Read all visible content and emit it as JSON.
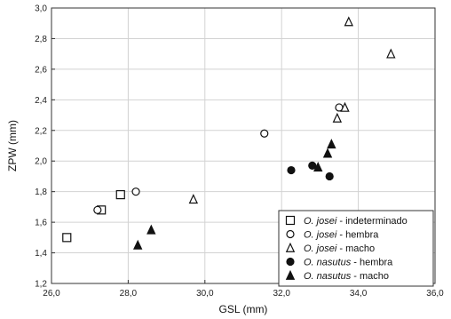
{
  "chart_data": {
    "type": "scatter",
    "xlabel": "GSL (mm)",
    "ylabel": "ZPW (mm)",
    "xlim": [
      26.0,
      36.0
    ],
    "ylim": [
      1.2,
      3.0
    ],
    "x_ticks": [
      "26,0",
      "28,0",
      "30,0",
      "32,0",
      "34,0",
      "36,0"
    ],
    "y_ticks": [
      "1,2",
      "1,4",
      "1,6",
      "1,8",
      "2,0",
      "2,2",
      "2,4",
      "2,6",
      "2,8",
      "3,0"
    ],
    "grid": true,
    "legend_position": "bottom-right",
    "series": [
      {
        "genus": "O.",
        "species": "josei",
        "sex": "indeterminado",
        "marker": "square-open",
        "x": [
          26.4,
          27.3,
          27.8
        ],
        "y": [
          1.5,
          1.68,
          1.78
        ]
      },
      {
        "genus": "O.",
        "species": "josei",
        "sex": "hembra",
        "marker": "circle-open",
        "x": [
          27.2,
          28.2,
          31.55,
          33.5
        ],
        "y": [
          1.68,
          1.8,
          2.18,
          2.35
        ]
      },
      {
        "genus": "O.",
        "species": "josei",
        "sex": "macho",
        "marker": "triangle-open",
        "x": [
          29.7,
          33.45,
          33.65,
          33.75,
          34.85
        ],
        "y": [
          1.75,
          2.28,
          2.35,
          2.91,
          2.7
        ]
      },
      {
        "genus": "O.",
        "species": "nasutus",
        "sex": "hembra",
        "marker": "circle-filled",
        "x": [
          32.25,
          32.8,
          33.25
        ],
        "y": [
          1.94,
          1.97,
          1.9
        ]
      },
      {
        "genus": "O.",
        "species": "nasutus",
        "sex": "macho",
        "marker": "triangle-filled",
        "x": [
          28.25,
          28.6,
          32.95,
          33.2,
          33.3
        ],
        "y": [
          1.45,
          1.55,
          1.96,
          2.05,
          2.11
        ]
      }
    ],
    "legend_separator": " - "
  }
}
